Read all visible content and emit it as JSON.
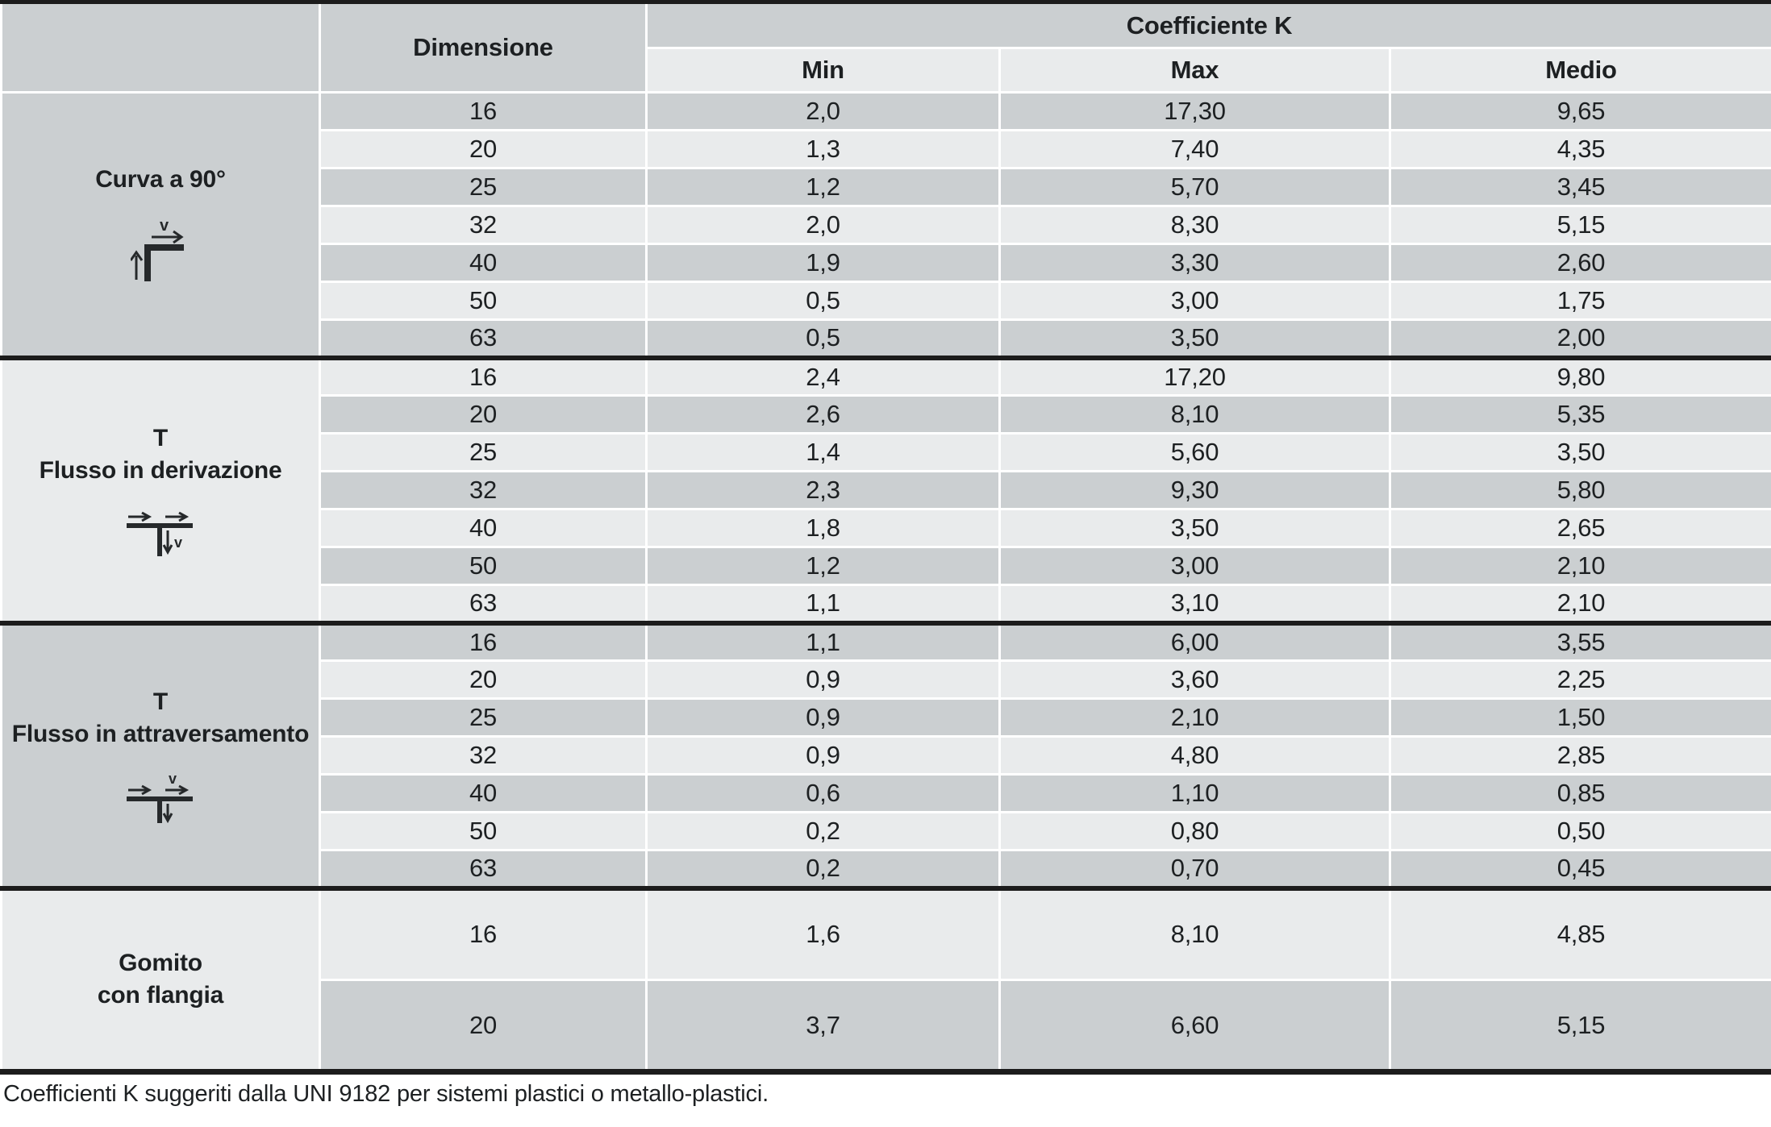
{
  "table": {
    "header": {
      "dimension_label": "Dimensione",
      "group_label": "Coefficiente K",
      "columns": [
        "Min",
        "Max",
        "Medio"
      ]
    },
    "sections": [
      {
        "id": "curva-90",
        "title_lines": [
          "Curva a 90°"
        ],
        "icon": "curva-90-flow-icon",
        "rows": [
          {
            "dimension": "16",
            "min": "2,0",
            "max": "17,30",
            "medio": "9,65"
          },
          {
            "dimension": "20",
            "min": "1,3",
            "max": "7,40",
            "medio": "4,35"
          },
          {
            "dimension": "25",
            "min": "1,2",
            "max": "5,70",
            "medio": "3,45"
          },
          {
            "dimension": "32",
            "min": "2,0",
            "max": "8,30",
            "medio": "5,15"
          },
          {
            "dimension": "40",
            "min": "1,9",
            "max": "3,30",
            "medio": "2,60"
          },
          {
            "dimension": "50",
            "min": "0,5",
            "max": "3,00",
            "medio": "1,75"
          },
          {
            "dimension": "63",
            "min": "0,5",
            "max": "3,50",
            "medio": "2,00"
          }
        ]
      },
      {
        "id": "t-derivazione",
        "title_lines": [
          "T",
          "Flusso in derivazione"
        ],
        "icon": "tee-branch-flow-icon",
        "rows": [
          {
            "dimension": "16",
            "min": "2,4",
            "max": "17,20",
            "medio": "9,80"
          },
          {
            "dimension": "20",
            "min": "2,6",
            "max": "8,10",
            "medio": "5,35"
          },
          {
            "dimension": "25",
            "min": "1,4",
            "max": "5,60",
            "medio": "3,50"
          },
          {
            "dimension": "32",
            "min": "2,3",
            "max": "9,30",
            "medio": "5,80"
          },
          {
            "dimension": "40",
            "min": "1,8",
            "max": "3,50",
            "medio": "2,65"
          },
          {
            "dimension": "50",
            "min": "1,2",
            "max": "3,00",
            "medio": "2,10"
          },
          {
            "dimension": "63",
            "min": "1,1",
            "max": "3,10",
            "medio": "2,10"
          }
        ]
      },
      {
        "id": "t-attraversamento",
        "title_lines": [
          "T",
          "Flusso in attraversamento"
        ],
        "icon": "tee-through-flow-icon",
        "rows": [
          {
            "dimension": "16",
            "min": "1,1",
            "max": "6,00",
            "medio": "3,55"
          },
          {
            "dimension": "20",
            "min": "0,9",
            "max": "3,60",
            "medio": "2,25"
          },
          {
            "dimension": "25",
            "min": "0,9",
            "max": "2,10",
            "medio": "1,50"
          },
          {
            "dimension": "32",
            "min": "0,9",
            "max": "4,80",
            "medio": "2,85"
          },
          {
            "dimension": "40",
            "min": "0,6",
            "max": "1,10",
            "medio": "0,85"
          },
          {
            "dimension": "50",
            "min": "0,2",
            "max": "0,80",
            "medio": "0,50"
          },
          {
            "dimension": "63",
            "min": "0,2",
            "max": "0,70",
            "medio": "0,45"
          }
        ]
      },
      {
        "id": "gomito-flangia",
        "title_lines": [
          "Gomito",
          "con flangia"
        ],
        "icon": null,
        "rows": [
          {
            "dimension": "16",
            "min": "1,6",
            "max": "8,10",
            "medio": "4,85"
          },
          {
            "dimension": "20",
            "min": "3,7",
            "max": "6,60",
            "medio": "5,15"
          }
        ]
      }
    ],
    "footnote": "Coefficienti K suggeriti dalla UNI 9182 per sistemi plastici o metallo-plastici."
  },
  "colors": {
    "row_dark": "#cbcfd1",
    "row_light": "#e9ebec",
    "border_black": "#1c1c1c",
    "grid_white": "#ffffff",
    "text": "#1d2022"
  }
}
